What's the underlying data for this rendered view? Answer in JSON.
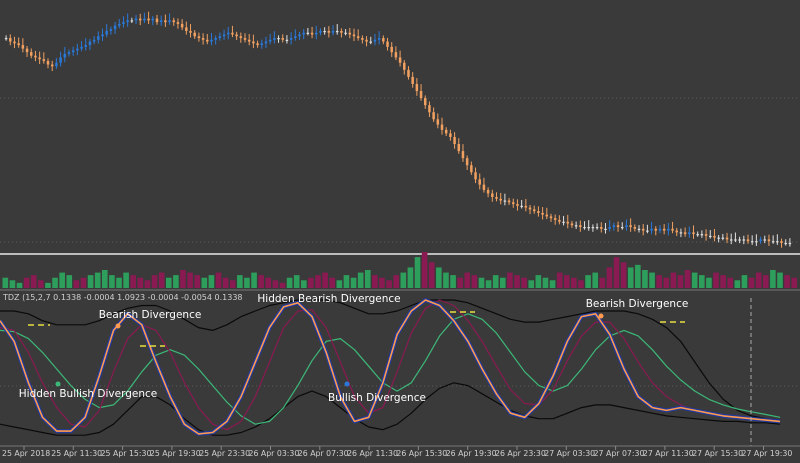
{
  "colors": {
    "background": "#3a3a3a",
    "bull_candle": "#2a78d8",
    "bear_candle": "#f0a060",
    "neutral_candle": "#e0e0e0",
    "hist_green": "#2e9e5c",
    "hist_maroon": "#8a1a52",
    "separator": "#e8e8e8",
    "grid": "#5a5a5a",
    "indicator_orange": "#ff9a50",
    "indicator_blue": "#1e3aa8",
    "indicator_maroon": "#8a1a52",
    "indicator_green": "#3cb878",
    "band_black": "#0a0a0a",
    "label_text": "#ffffff",
    "axis_text": "#d0d0d0"
  },
  "indicator_header": "TDZ (15,2,7 0.1338 -0.0004 1.0923 -0.0004 -0.0054 0.1338",
  "annotations": [
    {
      "text": "Bearish Divergence",
      "dot": "orange"
    },
    {
      "text": "Hidden Bearish Divergence",
      "dot": "orange"
    },
    {
      "text": "Bearish Divergence",
      "dot": "orange"
    },
    {
      "text": "Hidden Bullish Divergence",
      "dot": "green"
    },
    {
      "text": "Bullish Divergence",
      "dot": "blue"
    }
  ],
  "chart_data": [
    {
      "type": "candlestick",
      "grid": true,
      "prices": [
        128,
        126,
        125,
        124,
        122,
        120,
        118,
        117,
        116,
        115,
        113,
        112,
        114,
        117,
        119,
        120,
        121,
        122,
        123,
        124,
        126,
        127,
        129,
        130,
        132,
        133,
        135,
        136,
        137,
        138,
        138,
        139,
        138,
        139,
        138,
        139,
        137,
        138,
        137,
        138,
        137,
        136,
        134,
        132,
        131,
        129,
        128,
        127,
        126,
        127,
        128,
        129,
        130,
        131,
        130,
        129,
        128,
        127,
        126,
        125,
        124,
        125,
        126,
        127,
        128,
        128,
        127,
        127,
        128,
        129,
        130,
        131,
        131,
        130,
        131,
        132,
        132,
        131,
        132,
        132,
        131,
        131,
        130,
        129,
        128,
        127,
        126,
        126,
        127,
        128,
        126,
        123,
        120,
        117,
        114,
        110,
        106,
        102,
        98,
        94,
        90,
        86,
        82,
        79,
        76,
        74,
        72,
        68,
        64,
        60,
        56,
        52,
        48,
        45,
        42,
        40,
        38,
        37,
        36,
        36,
        35,
        34,
        33,
        33,
        32,
        31,
        30,
        29,
        28,
        27,
        26,
        25,
        24,
        24,
        23,
        22,
        22,
        21,
        21,
        21,
        21,
        21,
        20,
        20,
        21,
        22,
        21,
        21,
        22,
        21,
        20,
        20,
        19,
        19,
        20,
        19,
        20,
        19,
        20,
        19,
        18,
        18,
        17,
        18,
        17,
        17,
        17,
        16,
        16,
        15,
        15,
        15,
        14,
        14,
        14,
        14,
        14,
        13,
        13,
        13,
        14,
        14,
        13,
        13,
        13,
        12,
        12,
        12
      ]
    },
    {
      "type": "bar",
      "series_kind": "histogram",
      "values": [
        4,
        3,
        2,
        4,
        5,
        3,
        2,
        4,
        6,
        5,
        3,
        4,
        5,
        6,
        7,
        5,
        4,
        6,
        5,
        4,
        3,
        5,
        6,
        4,
        5,
        7,
        6,
        5,
        4,
        5,
        6,
        4,
        3,
        5,
        4,
        6,
        5,
        4,
        3,
        2,
        4,
        5,
        3,
        4,
        5,
        6,
        4,
        3,
        5,
        4,
        6,
        7,
        5,
        4,
        3,
        5,
        6,
        8,
        12,
        14,
        10,
        8,
        6,
        5,
        4,
        6,
        5,
        4,
        3,
        5,
        4,
        6,
        5,
        4,
        3,
        5,
        4,
        3,
        6,
        5,
        4,
        3,
        5,
        6,
        4,
        8,
        12,
        10,
        8,
        9,
        7,
        6,
        5,
        4,
        6,
        5,
        7,
        6,
        5,
        4,
        6,
        5,
        4,
        3,
        5,
        4,
        6,
        5,
        7,
        6,
        5,
        4
      ],
      "signs": [
        1,
        1,
        1,
        -1,
        -1,
        -1,
        1,
        1,
        1,
        1,
        -1,
        -1,
        1,
        1,
        1,
        1,
        1,
        1,
        -1,
        -1,
        -1,
        -1,
        -1,
        1,
        1,
        -1,
        -1,
        -1,
        1,
        1,
        -1,
        -1,
        -1,
        1,
        1,
        1,
        -1,
        -1,
        -1,
        -1,
        1,
        1,
        1,
        -1,
        -1,
        -1,
        -1,
        1,
        1,
        1,
        1,
        1,
        -1,
        -1,
        -1,
        -1,
        1,
        1,
        1,
        -1,
        -1,
        1,
        1,
        1,
        -1,
        -1,
        -1,
        1,
        1,
        1,
        1,
        -1,
        -1,
        -1,
        1,
        1,
        1,
        1,
        -1,
        -1,
        -1,
        -1,
        1,
        1,
        -1,
        -1,
        -1,
        -1,
        1,
        1,
        1,
        1,
        -1,
        -1,
        -1,
        -1,
        -1,
        1,
        1,
        1,
        -1,
        -1,
        -1,
        1,
        1,
        -1,
        -1,
        -1,
        1,
        1,
        -1,
        -1
      ]
    },
    {
      "type": "line",
      "x_ticks": [
        "25 Apr 2018",
        "25 Apr 11:30",
        "25 Apr 15:30",
        "25 Apr 19:30",
        "25 Apr 23:30",
        "26 Apr 03:30",
        "26 Apr 07:30",
        "26 Apr 11:30",
        "26 Apr 15:30",
        "26 Apr 19:30",
        "26 Apr 23:30",
        "27 Apr 03:30",
        "27 Apr 07:30",
        "27 Apr 11:30",
        "27 Apr 15:30",
        "27 Apr 19:30"
      ],
      "series": [
        {
          "key": "fast",
          "color": "orange",
          "values": [
            0.85,
            0.7,
            0.4,
            0.15,
            0.05,
            0.05,
            0.15,
            0.45,
            0.78,
            0.9,
            0.82,
            0.55,
            0.3,
            0.1,
            0.03,
            0.04,
            0.12,
            0.3,
            0.55,
            0.8,
            0.95,
            0.98,
            0.88,
            0.62,
            0.3,
            0.12,
            0.15,
            0.4,
            0.75,
            0.92,
            1.0,
            0.96,
            0.85,
            0.7,
            0.5,
            0.32,
            0.18,
            0.15,
            0.25,
            0.45,
            0.7,
            0.88,
            0.9,
            0.75,
            0.5,
            0.3,
            0.22,
            0.2,
            0.22,
            0.2,
            0.18,
            0.16,
            0.15,
            0.14,
            0.13,
            0.12
          ]
        },
        {
          "key": "slow",
          "color": "maroon",
          "values": [
            0.8,
            0.78,
            0.62,
            0.4,
            0.22,
            0.1,
            0.08,
            0.2,
            0.48,
            0.72,
            0.82,
            0.78,
            0.62,
            0.4,
            0.22,
            0.1,
            0.06,
            0.12,
            0.3,
            0.55,
            0.8,
            0.92,
            0.93,
            0.8,
            0.55,
            0.3,
            0.18,
            0.22,
            0.48,
            0.76,
            0.94,
            1.0,
            0.96,
            0.85,
            0.7,
            0.52,
            0.35,
            0.25,
            0.24,
            0.35,
            0.56,
            0.74,
            0.84,
            0.84,
            0.72,
            0.55,
            0.4,
            0.3,
            0.24,
            0.2,
            0.18,
            0.16,
            0.15,
            0.14,
            0.13,
            0.12
          ]
        },
        {
          "key": "signal",
          "color": "green",
          "values": [
            0.78,
            0.77,
            0.72,
            0.62,
            0.5,
            0.38,
            0.28,
            0.22,
            0.24,
            0.34,
            0.48,
            0.6,
            0.64,
            0.6,
            0.5,
            0.38,
            0.26,
            0.16,
            0.1,
            0.12,
            0.22,
            0.38,
            0.56,
            0.7,
            0.72,
            0.64,
            0.52,
            0.4,
            0.34,
            0.4,
            0.56,
            0.74,
            0.86,
            0.9,
            0.86,
            0.76,
            0.62,
            0.48,
            0.38,
            0.34,
            0.38,
            0.5,
            0.64,
            0.74,
            0.78,
            0.74,
            0.64,
            0.52,
            0.42,
            0.34,
            0.28,
            0.24,
            0.21,
            0.19,
            0.17,
            0.15
          ]
        },
        {
          "key": "upper_band",
          "color": "black",
          "values": [
            0.92,
            0.92,
            0.9,
            0.85,
            0.82,
            0.82,
            0.82,
            0.85,
            0.9,
            0.94,
            0.96,
            0.96,
            0.92,
            0.86,
            0.8,
            0.78,
            0.82,
            0.88,
            0.92,
            0.96,
            0.98,
            1.0,
            1.0,
            1.0,
            0.98,
            0.94,
            0.9,
            0.9,
            0.92,
            0.96,
            1.0,
            1.0,
            1.0,
            0.98,
            0.94,
            0.9,
            0.86,
            0.84,
            0.84,
            0.86,
            0.88,
            0.9,
            0.92,
            0.92,
            0.92,
            0.9,
            0.86,
            0.8,
            0.7,
            0.55,
            0.4,
            0.28,
            0.2,
            0.16,
            0.14,
            0.13
          ]
        },
        {
          "key": "lower_band",
          "color": "black",
          "values": [
            0.1,
            0.08,
            0.06,
            0.04,
            0.02,
            0.02,
            0.02,
            0.04,
            0.1,
            0.2,
            0.3,
            0.3,
            0.24,
            0.14,
            0.06,
            0.02,
            0.02,
            0.04,
            0.08,
            0.14,
            0.22,
            0.3,
            0.34,
            0.3,
            0.22,
            0.14,
            0.08,
            0.06,
            0.1,
            0.18,
            0.28,
            0.36,
            0.4,
            0.38,
            0.32,
            0.26,
            0.2,
            0.16,
            0.14,
            0.14,
            0.18,
            0.22,
            0.24,
            0.24,
            0.22,
            0.2,
            0.18,
            0.16,
            0.15,
            0.14,
            0.13,
            0.12,
            0.12,
            0.11,
            0.11,
            0.1
          ]
        }
      ]
    }
  ]
}
